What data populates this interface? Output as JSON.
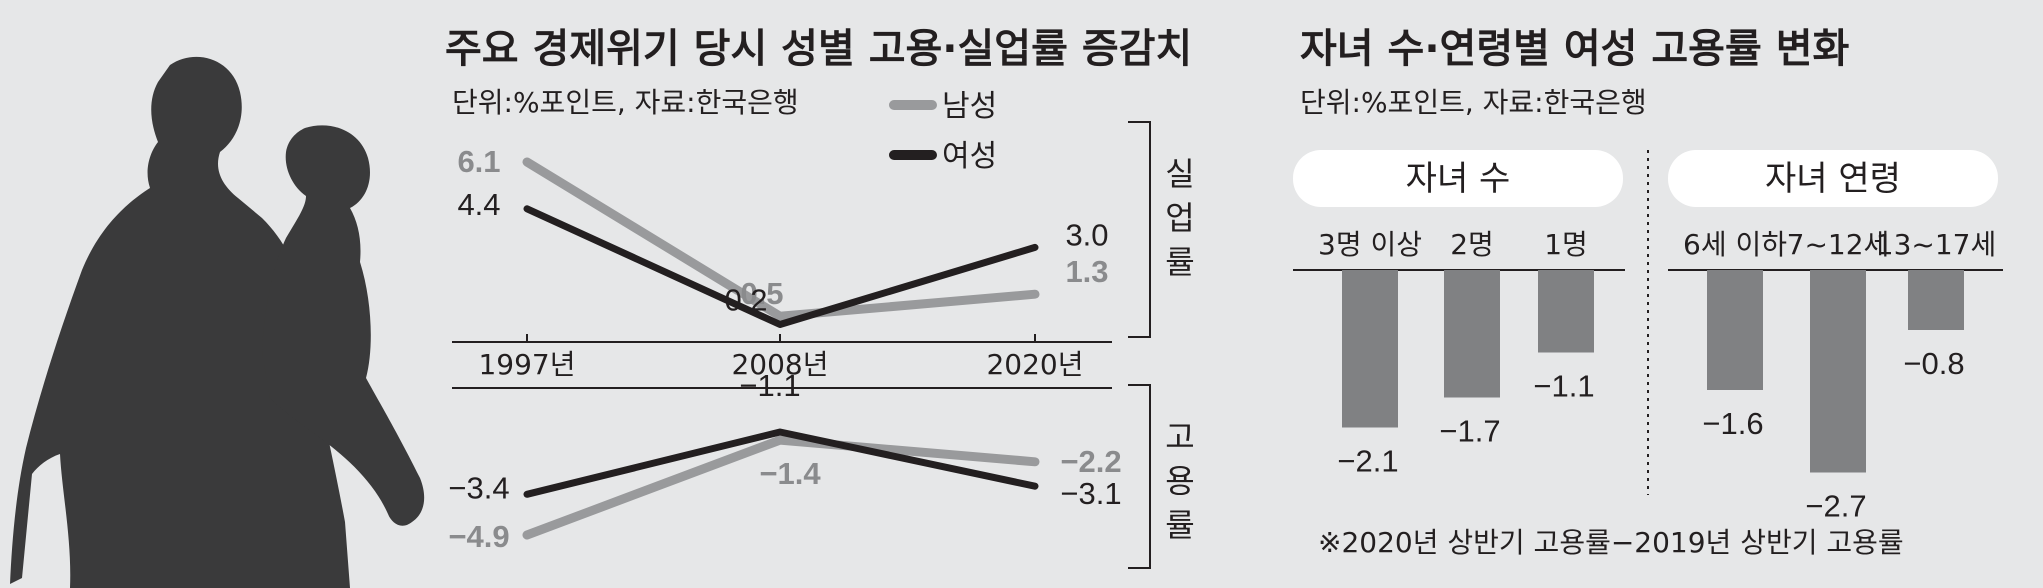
{
  "left_title": "주요 경제위기 당시 성별 고용·실업률 증감치",
  "left_subtitle": "단위:%포인트, 자료:한국은행",
  "right_title": "자녀 수·연령별 여성 고용률 변화",
  "right_subtitle": "단위:%포인트, 자료:한국은행",
  "footnote": "※2020년 상반기 고용률−2019년 상반기 고용률",
  "colors": {
    "male": "#999a9c",
    "female": "#231f20",
    "bar": "#808183",
    "silhouette": "#3a3a3b"
  },
  "chart_data": [
    {
      "type": "line",
      "title": "주요 경제위기 당시 성별 고용·실업률 증감치",
      "panel": "실업률",
      "x": [
        "1997년",
        "2008년",
        "2020년"
      ],
      "series": [
        {
          "name": "남성",
          "values": [
            6.1,
            0.5,
            1.3
          ],
          "labels": [
            "6.1",
            "0.5",
            "1.3"
          ]
        },
        {
          "name": "여성",
          "values": [
            4.4,
            0.2,
            3.0
          ],
          "labels": [
            "4.4",
            "0.2",
            "3.0"
          ]
        }
      ],
      "legend": [
        "남성",
        "여성"
      ]
    },
    {
      "type": "line",
      "panel": "고용률",
      "x": [
        "1997년",
        "2008년",
        "2020년"
      ],
      "series": [
        {
          "name": "남성",
          "values": [
            -4.9,
            -1.4,
            -2.2
          ],
          "labels": [
            "−4.9",
            "−1.4",
            "−2.2"
          ]
        },
        {
          "name": "여성",
          "values": [
            -3.4,
            -1.1,
            -3.1
          ],
          "labels": [
            "−3.4",
            "−1.1",
            "−3.1"
          ]
        }
      ]
    },
    {
      "type": "bar",
      "title": "자녀 수·연령별 여성 고용률 변화",
      "group": "자녀 수",
      "categories": [
        "3명 이상",
        "2명",
        "1명"
      ],
      "values": [
        -2.1,
        -1.7,
        -1.1
      ],
      "labels": [
        "−2.1",
        "−1.7",
        "−1.1"
      ]
    },
    {
      "type": "bar",
      "group": "자녀 연령",
      "categories": [
        "6세 이하",
        "7~12세",
        "13~17세"
      ],
      "values": [
        -1.6,
        -2.7,
        -0.8
      ],
      "labels": [
        "−1.6",
        "−2.7",
        "−0.8"
      ]
    }
  ]
}
